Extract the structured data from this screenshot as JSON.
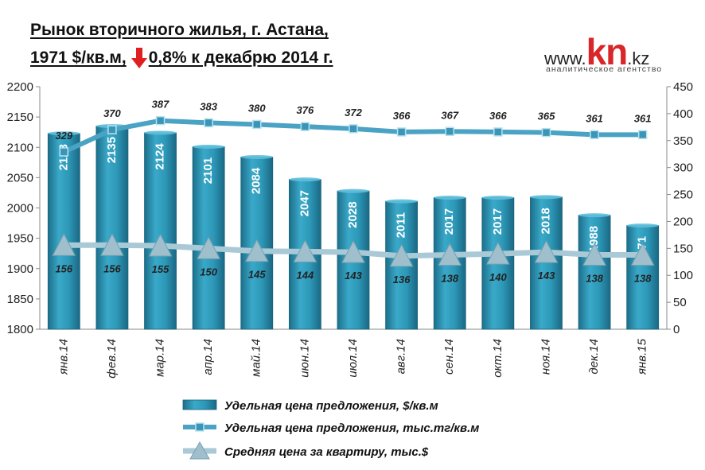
{
  "title": {
    "line1": "Рынок вторичного жилья, г. Астана,",
    "line2_left": "1971 $/кв.м,",
    "line2_right": "0,8% к декабрю 2014 г."
  },
  "logo": {
    "prefix": "www.",
    "brand": "kn",
    "suffix": ".kz",
    "tagline": "аналитическое агентство"
  },
  "colors": {
    "bar": "#2a93b3",
    "line": "#4aa3c4",
    "avg": "#a9c9d6",
    "arrow": "#e02020"
  },
  "chart_data": {
    "type": "bar",
    "categories": [
      "янв.14",
      "фев.14",
      "мар.14",
      "апр.14",
      "май.14",
      "июн.14",
      "июл.14",
      "авг.14",
      "сен.14",
      "окт.14",
      "ноя.14",
      "дек.14",
      "янв.15"
    ],
    "series": [
      {
        "name": "Удельная цена предложения, $/кв.м",
        "type": "bar",
        "axis": "left",
        "values": [
          2123,
          2135,
          2124,
          2101,
          2084,
          2047,
          2028,
          2011,
          2017,
          2017,
          2018,
          1988,
          1971
        ]
      },
      {
        "name": "Удельная цена предложения, тыс.тг/кв.м",
        "type": "line",
        "axis": "right",
        "values": [
          329,
          370,
          387,
          383,
          380,
          376,
          372,
          366,
          367,
          366,
          365,
          361,
          361
        ]
      },
      {
        "name": "Средняя цена за квартиру, тыс.$",
        "type": "line",
        "axis": "right",
        "values": [
          156,
          156,
          155,
          150,
          145,
          144,
          143,
          136,
          138,
          140,
          143,
          138,
          138
        ]
      }
    ],
    "y_left": {
      "min": 1800,
      "max": 2200,
      "step": 50
    },
    "y_right": {
      "min": 0,
      "max": 450,
      "step": 50
    },
    "legend_position": "bottom"
  }
}
